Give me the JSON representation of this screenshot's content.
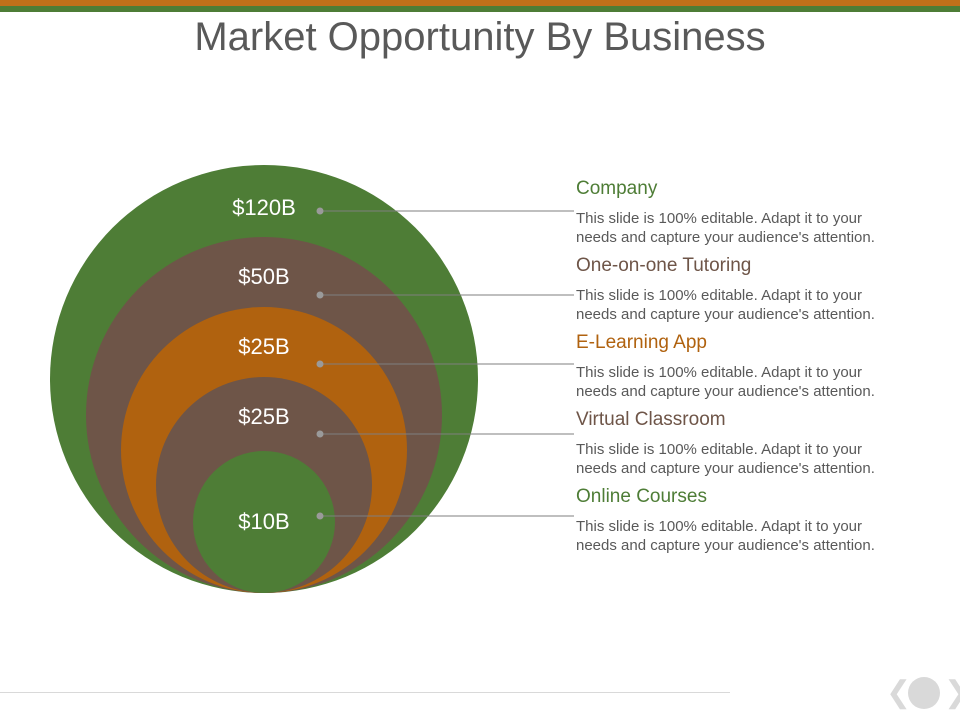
{
  "title": "Market Opportunity By Business",
  "colors": {
    "green": "#4e7d36",
    "brown": "#6e5548",
    "orange": "#b0620f",
    "line": "#7f7f7f",
    "dot": "#9a9a9a"
  },
  "items": [
    {
      "value": "$120B",
      "heading": "Company",
      "heading_color": "#4e7d36",
      "circle_color": "#4e7d36",
      "description_1": "This slide is 100% editable. Adapt it to your",
      "description_2": "needs and capture your audience's attention."
    },
    {
      "value": "$50B",
      "heading": "One-on-one Tutoring",
      "heading_color": "#6e5548",
      "circle_color": "#6e5548",
      "description_1": "This slide is 100% editable. Adapt it to your",
      "description_2": "needs and capture your audience's attention."
    },
    {
      "value": "$25B",
      "heading": "E-Learning App",
      "heading_color": "#b0620f",
      "circle_color": "#b0620f",
      "description_1": "This slide is 100% editable. Adapt it to your",
      "description_2": "needs and capture your audience's attention."
    },
    {
      "value": "$25B",
      "heading": "Virtual Classroom",
      "heading_color": "#6e5548",
      "circle_color": "#6e5548",
      "description_1": "This slide is 100% editable. Adapt it to your",
      "description_2": "needs and capture your audience's attention."
    },
    {
      "value": "$10B",
      "heading": "Online Courses",
      "heading_color": "#4e7d36",
      "circle_color": "#4e7d36",
      "description_1": "This slide is 100% editable. Adapt it to your",
      "description_2": "needs and capture your audience's attention."
    }
  ],
  "navigation": {
    "prev_icon": "chevron-left-icon",
    "next_icon": "chevron-right-icon"
  }
}
